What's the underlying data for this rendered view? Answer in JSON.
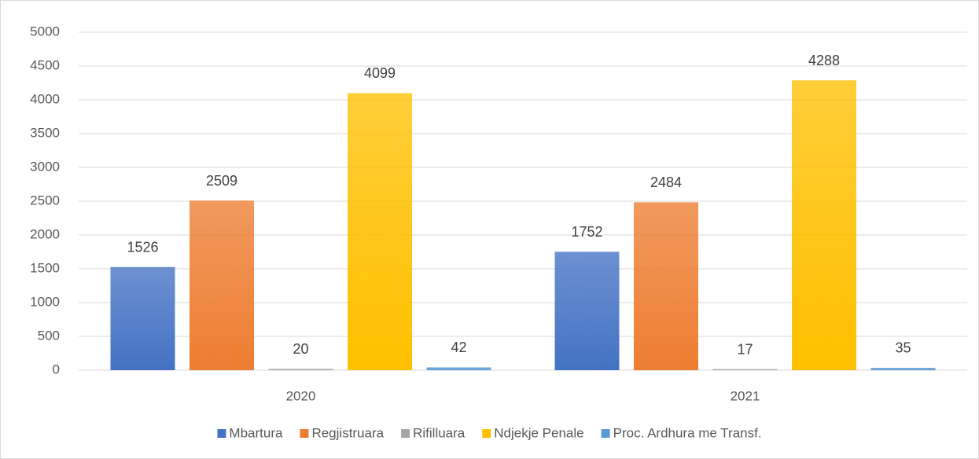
{
  "chart_data": {
    "type": "bar",
    "categories": [
      "2020",
      "2021"
    ],
    "series": [
      {
        "name": "Mbartura",
        "color": "#4472c4",
        "values": [
          1526,
          1752
        ]
      },
      {
        "name": "Regjistruara",
        "color": "#ed7d31",
        "values": [
          2509,
          2484
        ]
      },
      {
        "name": "Rifilluara",
        "color": "#a5a5a5",
        "values": [
          20,
          17
        ]
      },
      {
        "name": "Ndjekje Penale",
        "color": "#ffc000",
        "values": [
          4099,
          4288
        ]
      },
      {
        "name": "Proc. Ardhura me Transf.",
        "color": "#5b9bd5",
        "values": [
          42,
          35
        ]
      }
    ],
    "ylim": [
      0,
      5000
    ],
    "yticks": [
      0,
      500,
      1000,
      1500,
      2000,
      2500,
      3000,
      3500,
      4000,
      4500,
      5000
    ],
    "grid": true,
    "legend": "bottom"
  }
}
